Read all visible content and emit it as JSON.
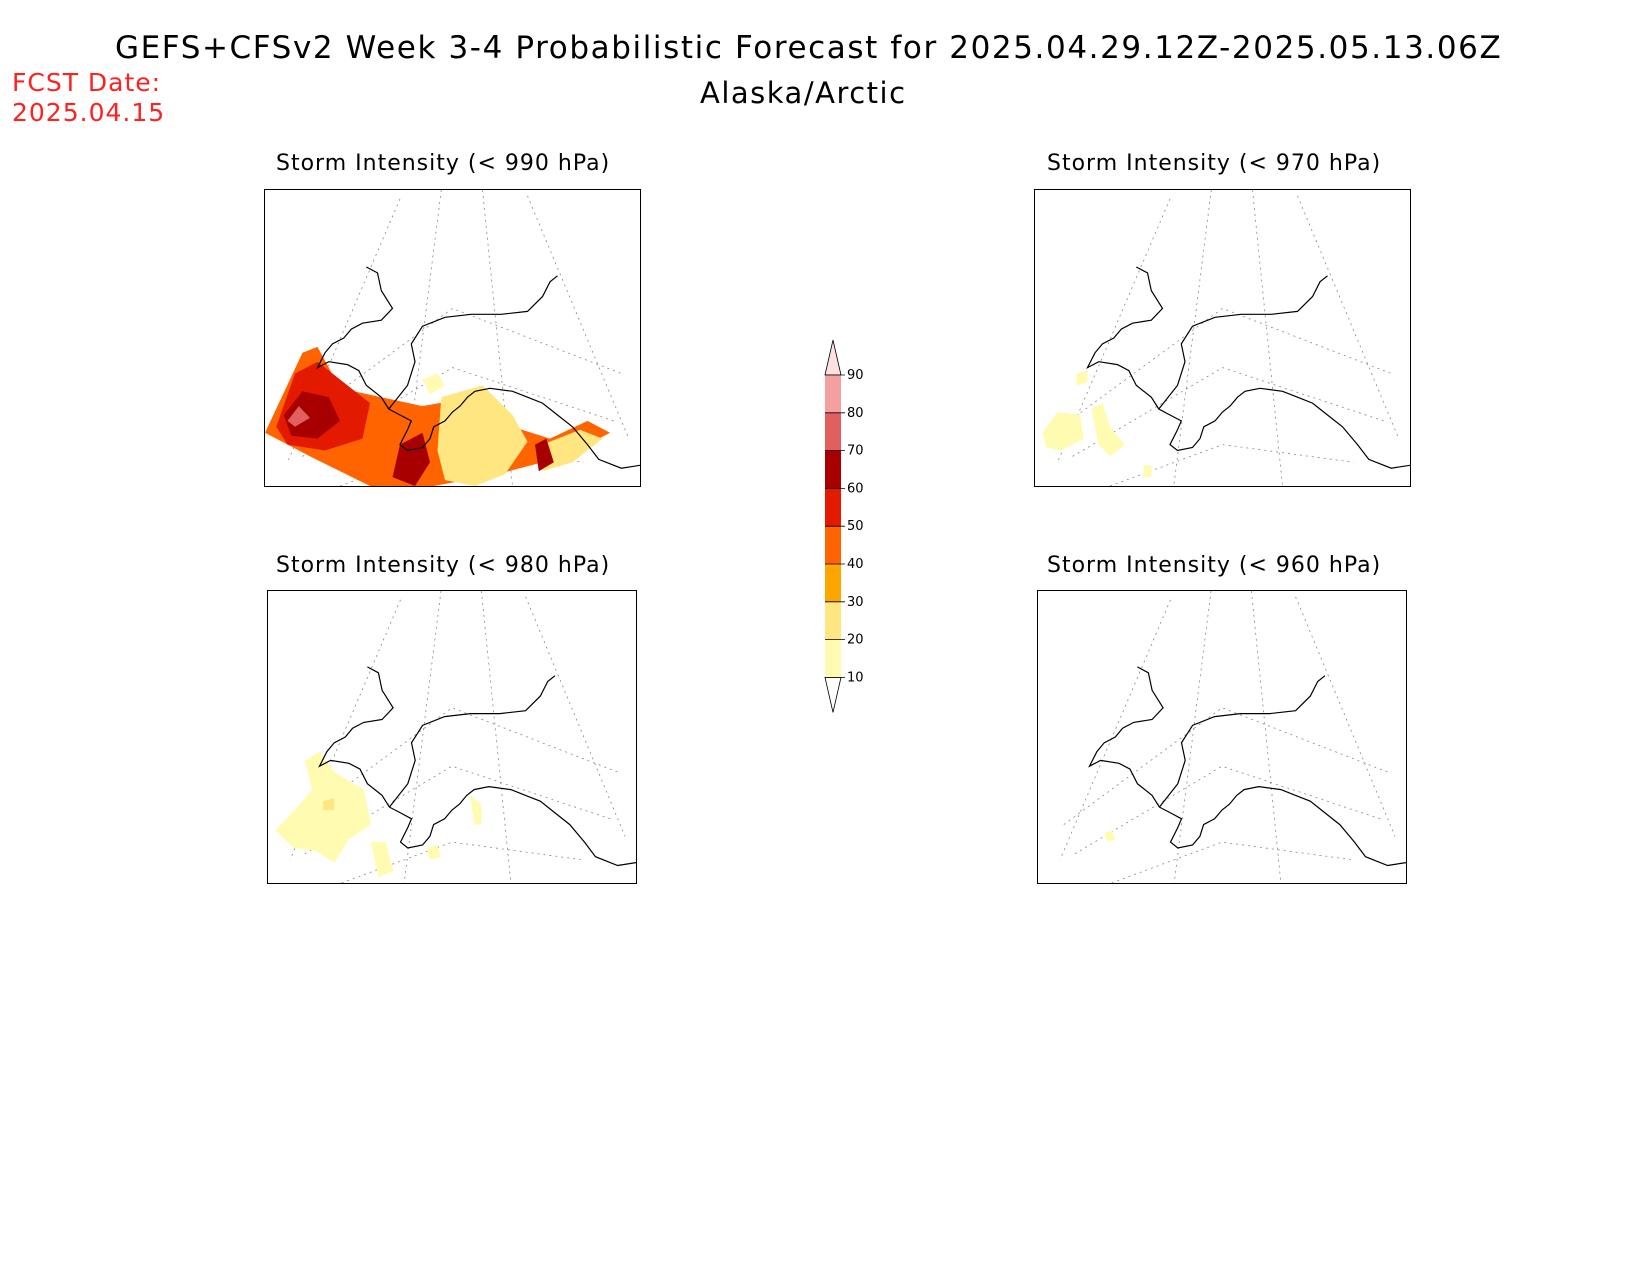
{
  "title": "GEFS+CFSv2 Week 3-4 Probabilistic Forecast for 2025.04.29.12Z-2025.05.13.06Z",
  "region": "Alaska/Arctic",
  "fcst_date_label": "FCST Date:",
  "fcst_date": "2025.04.15",
  "panels": [
    {
      "id": "p990",
      "title": "Storm Intensity (< 990 hPa)",
      "coverage": "extensive"
    },
    {
      "id": "p970",
      "title": "Storm Intensity (< 970 hPa)",
      "coverage": "sparse"
    },
    {
      "id": "p980",
      "title": "Storm Intensity (< 980 hPa)",
      "coverage": "moderate"
    },
    {
      "id": "p960",
      "title": "Storm Intensity (< 960 hPa)",
      "coverage": "trace"
    }
  ],
  "colorbar": {
    "levels": [
      "10",
      "20",
      "30",
      "40",
      "50",
      "60",
      "70",
      "80",
      "90"
    ],
    "colors": [
      "#fffbb0",
      "#ffe680",
      "#ffa500",
      "#ff6400",
      "#e31a00",
      "#a80000",
      "#e06060",
      "#f4a0a0",
      "#fde0e0"
    ]
  }
}
